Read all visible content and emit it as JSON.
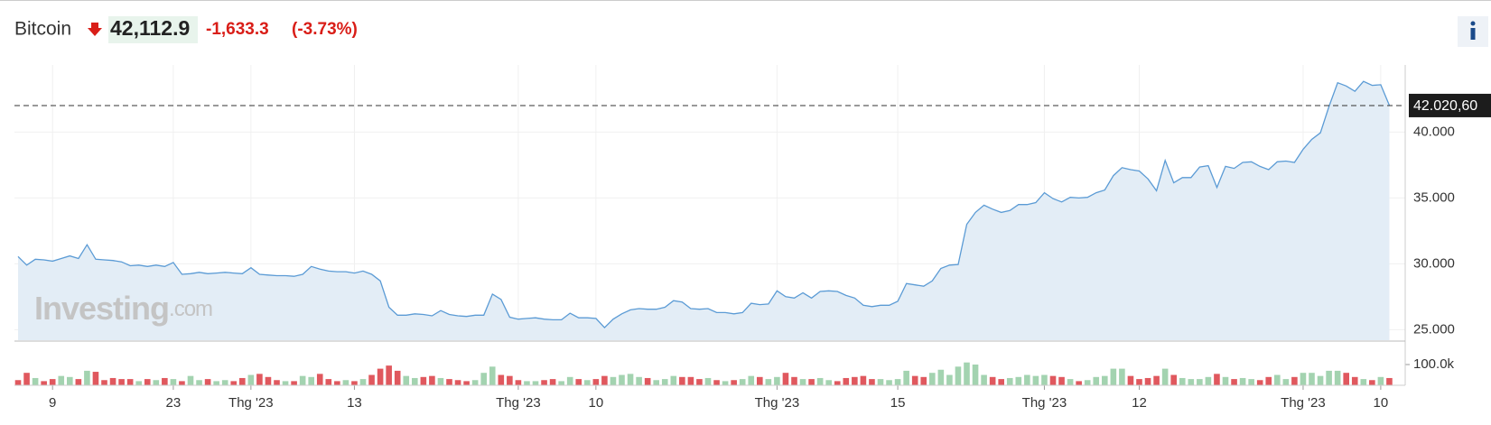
{
  "chart_data": {
    "type": "line",
    "title": "Bitcoin",
    "price": "42,112.9",
    "change": "-1,633.3",
    "change_pct": "(-3.73%)",
    "watermark": "Investing",
    "watermark_suffix": ".com",
    "categories": [
      null,
      null,
      null,
      null,
      "9",
      null,
      null,
      null,
      null,
      null,
      null,
      null,
      null,
      null,
      null,
      null,
      null,
      null,
      "23",
      null,
      null,
      null,
      null,
      null,
      null,
      null,
      null,
      "Thg '23",
      null,
      null,
      null,
      null,
      null,
      null,
      null,
      null,
      null,
      null,
      null,
      "13",
      null,
      null,
      null,
      null,
      null,
      null,
      null,
      null,
      null,
      null,
      null,
      null,
      null,
      null,
      null,
      null,
      null,
      null,
      "Thg '23",
      null,
      null,
      null,
      null,
      null,
      null,
      null,
      null,
      "10",
      null,
      null,
      null,
      null,
      null,
      null,
      null,
      null,
      null,
      null,
      null,
      null,
      null,
      null,
      null,
      null,
      null,
      null,
      null,
      null,
      "Thg '23",
      null,
      null,
      null,
      null,
      null,
      null,
      null,
      null,
      null,
      null,
      null,
      null,
      null,
      "15",
      null,
      null,
      null,
      null,
      null,
      null,
      null,
      null,
      null,
      null,
      null,
      null,
      null,
      null,
      null,
      null,
      "Thg '23",
      null,
      null,
      null,
      null,
      null,
      null,
      null,
      null,
      null,
      null,
      "12",
      null,
      null,
      null,
      null,
      null,
      null,
      null,
      null,
      null,
      null,
      null,
      null,
      null,
      null,
      null,
      null,
      null,
      null,
      "Thg '23",
      null,
      null,
      null,
      null,
      null,
      null,
      null,
      null,
      "10",
      null
    ],
    "series": [
      {
        "color": "#5b9bd5",
        "fill": "#e3edf6",
        "values": [
          30550,
          29900,
          30350,
          30300,
          30200,
          30400,
          30600,
          30400,
          31450,
          30350,
          30300,
          30250,
          30150,
          29850,
          29900,
          29800,
          29900,
          29800,
          30100,
          29200,
          29250,
          29350,
          29250,
          29300,
          29350,
          29300,
          29250,
          29700,
          29200,
          29150,
          29100,
          29100,
          29050,
          29200,
          29800,
          29600,
          29450,
          29400,
          29400,
          29300,
          29450,
          29200,
          28700,
          26700,
          26100,
          26100,
          26200,
          26150,
          26050,
          26450,
          26150,
          26050,
          26000,
          26100,
          26100,
          27700,
          27300,
          25950,
          25800,
          25850,
          25900,
          25800,
          25750,
          25750,
          26250,
          25900,
          25900,
          25850,
          25150,
          25800,
          26200,
          26500,
          26600,
          26550,
          26550,
          26700,
          27200,
          27100,
          26600,
          26550,
          26600,
          26300,
          26300,
          26200,
          26300,
          27000,
          26900,
          26950,
          27950,
          27500,
          27400,
          27800,
          27400,
          27900,
          27950,
          27900,
          27600,
          27400,
          26850,
          26750,
          26850,
          26850,
          27150,
          28500,
          28400,
          28300,
          28700,
          29650,
          29900,
          29950,
          33000,
          33900,
          34450,
          34150,
          33900,
          34050,
          34500,
          34500,
          34650,
          35400,
          34950,
          34700,
          35050,
          35000,
          35050,
          35400,
          35600,
          36700,
          37300,
          37150,
          37050,
          36450,
          35550,
          37850,
          36150,
          36550,
          36550,
          37350,
          37450,
          35800,
          37400,
          37250,
          37700,
          37750,
          37400,
          37150,
          37750,
          37800,
          37700,
          38700,
          39450,
          39950,
          41950,
          43750,
          43500,
          43100,
          43850,
          43550,
          43600,
          42020.6
        ]
      }
    ],
    "ylim": [
      24200,
      45100
    ],
    "yticks": [
      {
        "value": 25000,
        "label": "25.000"
      },
      {
        "value": 30000,
        "label": "30.000"
      },
      {
        "value": 35000,
        "label": "35.000"
      },
      {
        "value": 40000,
        "label": "40.000"
      }
    ],
    "last": {
      "value": 42020.6,
      "label": "42.020,60"
    },
    "grid": true,
    "volume": {
      "up_color": "#a3d3b0",
      "down_color": "#e0585e",
      "ylim": [
        0,
        200000
      ],
      "yticks": [
        {
          "value": 100000,
          "label": "100.0k"
        }
      ],
      "values": [
        25000,
        60000,
        35000,
        20000,
        30000,
        45000,
        40000,
        30000,
        70000,
        65000,
        25000,
        35000,
        30000,
        30000,
        20000,
        30000,
        25000,
        35000,
        30000,
        20000,
        45000,
        25000,
        30000,
        20000,
        25000,
        20000,
        35000,
        50000,
        55000,
        40000,
        25000,
        20000,
        20000,
        45000,
        40000,
        55000,
        30000,
        20000,
        25000,
        20000,
        30000,
        50000,
        80000,
        95000,
        70000,
        45000,
        35000,
        40000,
        45000,
        35000,
        30000,
        25000,
        20000,
        25000,
        60000,
        90000,
        50000,
        45000,
        25000,
        20000,
        20000,
        25000,
        30000,
        20000,
        40000,
        30000,
        25000,
        30000,
        45000,
        40000,
        50000,
        55000,
        40000,
        35000,
        25000,
        30000,
        45000,
        40000,
        40000,
        30000,
        35000,
        25000,
        20000,
        25000,
        30000,
        45000,
        40000,
        30000,
        40000,
        60000,
        40000,
        30000,
        30000,
        35000,
        25000,
        20000,
        35000,
        40000,
        45000,
        30000,
        30000,
        25000,
        30000,
        70000,
        45000,
        40000,
        60000,
        75000,
        50000,
        90000,
        110000,
        100000,
        50000,
        40000,
        30000,
        35000,
        40000,
        50000,
        45000,
        50000,
        45000,
        40000,
        30000,
        20000,
        25000,
        40000,
        45000,
        80000,
        80000,
        45000,
        30000,
        35000,
        45000,
        80000,
        50000,
        35000,
        30000,
        30000,
        40000,
        55000,
        40000,
        30000,
        35000,
        30000,
        25000,
        40000,
        50000,
        30000,
        40000,
        60000,
        60000,
        45000,
        70000,
        70000,
        60000,
        40000,
        30000,
        25000,
        40000,
        35000
      ]
    }
  }
}
